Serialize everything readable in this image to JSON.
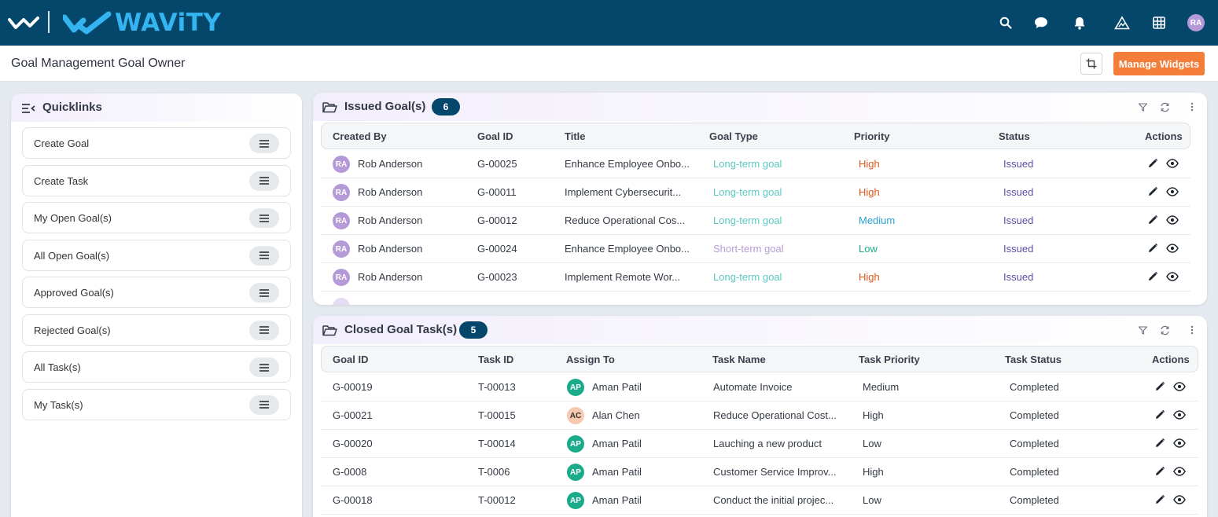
{
  "brand": {
    "name": "WAViTY"
  },
  "header": {
    "title": "Goal Management Goal Owner",
    "manage_widgets_label": "Manage Widgets"
  },
  "top_icons": [
    "search-icon",
    "chat-icon",
    "bell-icon",
    "logo-triangle-icon",
    "apps-grid-icon"
  ],
  "user": {
    "initials": "RA"
  },
  "quicklinks": {
    "title": "Quicklinks",
    "items": [
      {
        "label": "Create Goal"
      },
      {
        "label": "Create Task"
      },
      {
        "label": "My Open Goal(s)"
      },
      {
        "label": "All Open Goal(s)"
      },
      {
        "label": "Approved Goal(s)"
      },
      {
        "label": "Rejected Goal(s)"
      },
      {
        "label": "All Task(s)"
      },
      {
        "label": "My Task(s)"
      }
    ]
  },
  "issued_goals": {
    "title": "Issued Goal(s)",
    "count": "6",
    "columns": [
      "Created By",
      "Goal ID",
      "Title",
      "Goal Type",
      "Priority",
      "Status",
      "Actions"
    ],
    "rows": [
      {
        "initials": "RA",
        "created_by": "Rob Anderson",
        "goal_id": "G-00025",
        "title": "Enhance Employee Onbo...",
        "goal_type": "Long-term goal",
        "priority": "High",
        "status": "Issued"
      },
      {
        "initials": "RA",
        "created_by": "Rob Anderson",
        "goal_id": "G-00011",
        "title": "Implement Cybersecurit...",
        "goal_type": "Long-term goal",
        "priority": "High",
        "status": "Issued"
      },
      {
        "initials": "RA",
        "created_by": "Rob Anderson",
        "goal_id": "G-00012",
        "title": "Reduce Operational Cos...",
        "goal_type": "Long-term goal",
        "priority": "Medium",
        "status": "Issued"
      },
      {
        "initials": "RA",
        "created_by": "Rob Anderson",
        "goal_id": "G-00024",
        "title": "Enhance Employee Onbo...",
        "goal_type": "Short-term goal",
        "priority": "Low",
        "status": "Issued"
      },
      {
        "initials": "RA",
        "created_by": "Rob Anderson",
        "goal_id": "G-00023",
        "title": "Implement Remote Wor...",
        "goal_type": "Long-term goal",
        "priority": "High",
        "status": "Issued"
      }
    ]
  },
  "closed_tasks": {
    "title": "Closed Goal Task(s)",
    "count": "5",
    "columns": [
      "Goal ID",
      "Task ID",
      "Assign To",
      "Task Name",
      "Task Priority",
      "Task Status",
      "Actions"
    ],
    "rows": [
      {
        "goal_id": "G-00019",
        "task_id": "T-00013",
        "initials": "AP",
        "assign_to": "Aman Patil",
        "task_name": "Automate Invoice",
        "priority": "Medium",
        "status": "Completed"
      },
      {
        "goal_id": "G-00021",
        "task_id": "T-00015",
        "initials": "AC",
        "assign_to": "Alan Chen",
        "task_name": "Reduce Operational Cost...",
        "priority": "High",
        "status": "Completed"
      },
      {
        "goal_id": "G-00020",
        "task_id": "T-00014",
        "initials": "AP",
        "assign_to": "Aman Patil",
        "task_name": "Lauching a new product",
        "priority": "Low",
        "status": "Completed"
      },
      {
        "goal_id": "G-0008",
        "task_id": "T-0006",
        "initials": "AP",
        "assign_to": "Aman Patil",
        "task_name": "Customer Service Improv...",
        "priority": "High",
        "status": "Completed"
      },
      {
        "goal_id": "G-00018",
        "task_id": "T-00012",
        "initials": "AP",
        "assign_to": "Aman Patil",
        "task_name": "Conduct the initial projec...",
        "priority": "Low",
        "status": "Completed"
      }
    ]
  },
  "colors": {
    "topbar": "#04476b",
    "accent_orange": "#f57d3a",
    "long_term": "#5cc8c0",
    "short_term": "#b79bd4",
    "priority_high": "#e0581e",
    "priority_medium": "#2a9fd6",
    "priority_low": "#1aab8b",
    "status_issued": "#5b4ea8",
    "avatar_ra": "#b49ad6",
    "avatar_ap": "#1aab8b",
    "avatar_ac": "#f7c9b0"
  }
}
